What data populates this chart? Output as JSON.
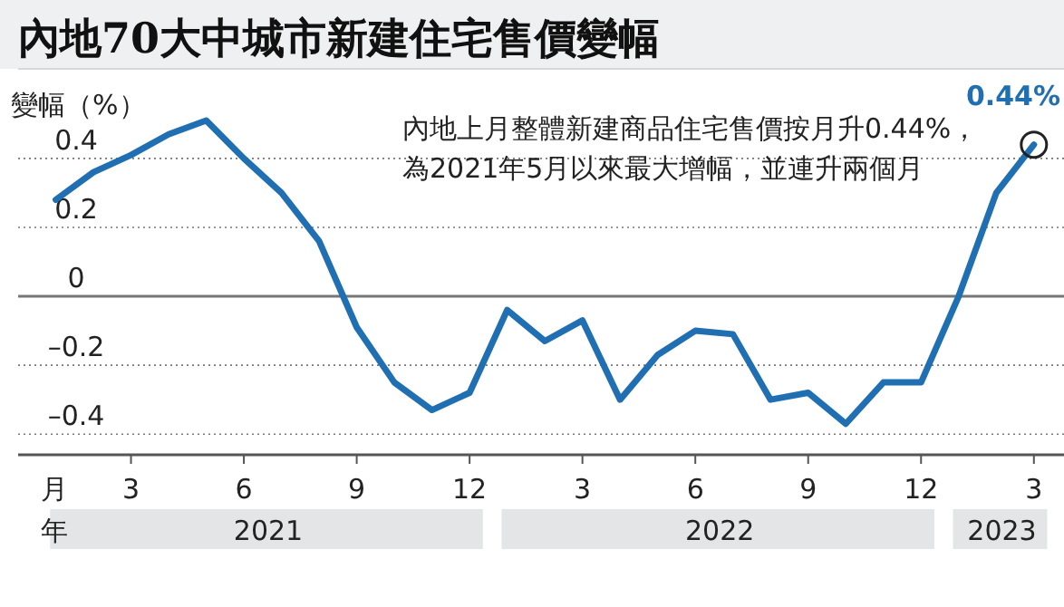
{
  "chart_data": {
    "type": "line",
    "title": "內地70大中城市新建住宅售價變幅",
    "ylabel": "變幅（%）",
    "xlabel": "月",
    "x": [
      "2021-01",
      "2021-02",
      "2021-03",
      "2021-04",
      "2021-05",
      "2021-06",
      "2021-07",
      "2021-08",
      "2021-09",
      "2021-10",
      "2021-11",
      "2021-12",
      "2022-01",
      "2022-02",
      "2022-03",
      "2022-04",
      "2022-05",
      "2022-06",
      "2022-07",
      "2022-08",
      "2022-09",
      "2022-10",
      "2022-11",
      "2022-12",
      "2023-01",
      "2023-02",
      "2023-03"
    ],
    "series": [
      {
        "color": "#1f6fb2",
        "values": [
          0.28,
          0.36,
          0.41,
          0.47,
          0.51,
          0.4,
          0.3,
          0.16,
          -0.09,
          -0.25,
          -0.33,
          -0.28,
          -0.04,
          -0.13,
          -0.07,
          -0.3,
          -0.17,
          -0.1,
          -0.11,
          -0.3,
          -0.28,
          -0.37,
          -0.25,
          -0.25,
          0.0,
          0.3,
          0.44
        ]
      }
    ],
    "xlim": [
      "2020-12",
      "2023-03-25"
    ],
    "xticks": [
      {
        "value": "2021-03",
        "label": "3"
      },
      {
        "value": "2021-06",
        "label": "6"
      },
      {
        "value": "2021-09",
        "label": "9"
      },
      {
        "value": "2021-12",
        "label": "12"
      },
      {
        "value": "2022-03",
        "label": "3"
      },
      {
        "value": "2022-06",
        "label": "6"
      },
      {
        "value": "2022-09",
        "label": "9"
      },
      {
        "value": "2022-12",
        "label": "12"
      },
      {
        "value": "2023-03",
        "label": "3"
      }
    ],
    "ylim": [
      -0.46,
      0.66
    ],
    "yticks": [
      {
        "value": -0.4,
        "label": "–0.4"
      },
      {
        "value": -0.2,
        "label": "–0.2"
      },
      0,
      0.2,
      0.4
    ],
    "grid": "y",
    "marker": "none",
    "line_style": "solid",
    "annotations": [
      "內地上月整體新建商品住宅售價按月升0.44%，為2021年5月以來最大增幅，並連升兩個月",
      "年",
      {
        "text": "0.44%",
        "x": "2023-03",
        "y": 0.44
      },
      "2021",
      "2022",
      "2023"
    ]
  }
}
